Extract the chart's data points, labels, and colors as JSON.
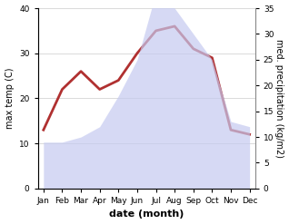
{
  "months": [
    "Jan",
    "Feb",
    "Mar",
    "Apr",
    "May",
    "Jun",
    "Jul",
    "Aug",
    "Sep",
    "Oct",
    "Nov",
    "Dec"
  ],
  "temperature": [
    13,
    22,
    26,
    22,
    24,
    30,
    35,
    36,
    31,
    29,
    13,
    12
  ],
  "precipitation": [
    9,
    9,
    10,
    12,
    18,
    25,
    38,
    35,
    30,
    25,
    13,
    12
  ],
  "temp_color": "#b03030",
  "precip_fill_color": "#c5caf0",
  "precip_alpha": 0.7,
  "ylim_temp": [
    0,
    40
  ],
  "ylim_precip": [
    0,
    35
  ],
  "xlabel": "date (month)",
  "ylabel_left": "max temp (C)",
  "ylabel_right": "med. precipitation (kg/m2)",
  "temp_yticks": [
    0,
    10,
    20,
    30,
    40
  ],
  "precip_yticks": [
    0,
    5,
    10,
    15,
    20,
    25,
    30,
    35
  ],
  "background_color": "#ffffff",
  "figsize": [
    3.18,
    2.47
  ],
  "dpi": 100,
  "temp_linewidth": 2.0,
  "xlabel_fontsize": 8,
  "ylabel_fontsize": 7,
  "tick_fontsize": 6.5
}
